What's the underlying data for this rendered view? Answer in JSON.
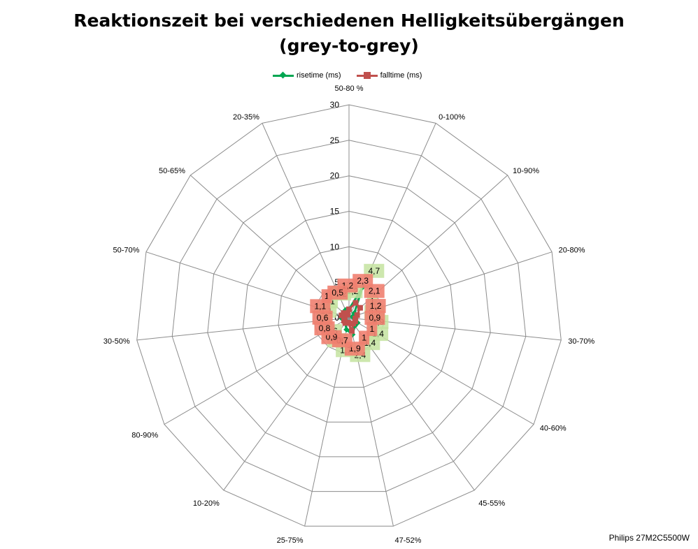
{
  "chart_data": {
    "type": "radar",
    "title_lines": [
      "Reaktionszeit bei verschiedenen Helligkeitsübergängen",
      "(grey-to-grey)"
    ],
    "categories": [
      "50-80 %",
      "0-100%",
      "10-90%",
      "20-80%",
      "30-70%",
      "40-60%",
      "45-55%",
      "47-52%",
      "25-75%",
      "10-20%",
      "80-90%",
      "30-50%",
      "50-70%",
      "50-65%",
      "20-35%"
    ],
    "radial_ticks": [
      "30",
      "25",
      "20",
      "15",
      "10",
      "5",
      "0"
    ],
    "rlim": [
      0,
      30
    ],
    "grid": true,
    "legend_position": "top-center",
    "series": [
      {
        "name": "risetime (ms)",
        "color": "#00a651",
        "label_bg": "#c4e3a0",
        "marker": "diamond",
        "values": [
          1.2,
          4.7,
          1.0,
          0.5,
          0.9,
          1.4,
          1.4,
          2.4,
          1.7,
          0.9,
          0.6,
          1.0,
          1.1,
          1.0,
          1.2
        ],
        "labels": [
          "1,2",
          "4,7",
          "1",
          "0,5",
          "0,9",
          "1,4",
          "1,4",
          "2,4",
          "1,7",
          "0,9",
          "0,6",
          "1",
          "1,1",
          "1",
          "1,2"
        ]
      },
      {
        "name": "falltime (ms)",
        "color": "#c0504d",
        "label_bg": "#f08070",
        "marker": "square",
        "values": [
          1.2,
          2.3,
          2.1,
          1.2,
          0.9,
          1.0,
          1.0,
          1.9,
          0.7,
          0.9,
          0.8,
          0.6,
          1.1,
          1.0,
          0.5
        ],
        "labels": [
          "1,2",
          "2,3",
          "2,1",
          "1,2",
          "0,9",
          "1",
          "1",
          "1,9",
          "0,7",
          "0,9",
          "0,8",
          "0,6",
          "1,1",
          "1",
          "0,5"
        ]
      }
    ]
  },
  "source_note": "Philips 27M2C5500W"
}
